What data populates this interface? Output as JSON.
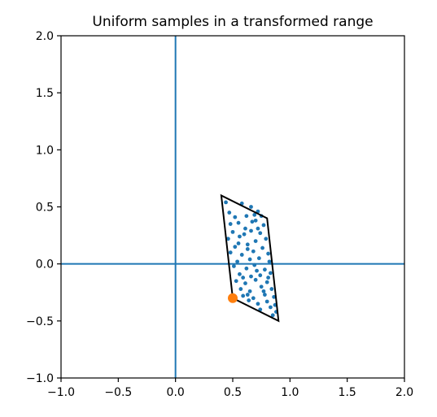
{
  "chart_data": {
    "type": "scatter",
    "title": "Uniform samples in a transformed range",
    "xlabel": "",
    "ylabel": "",
    "xlim": [
      -1.0,
      2.0
    ],
    "ylim": [
      -1.0,
      2.0
    ],
    "xticks": [
      -1.0,
      -0.5,
      0.0,
      0.5,
      1.0,
      1.5,
      2.0
    ],
    "yticks": [
      -1.0,
      -0.5,
      0.0,
      0.5,
      1.0,
      1.5,
      2.0
    ],
    "xtick_labels": [
      "−1.0",
      "−0.5",
      "0.0",
      "0.5",
      "1.0",
      "1.5",
      "2.0"
    ],
    "ytick_labels": [
      "−1.0",
      "−0.5",
      "0.0",
      "0.5",
      "1.0",
      "1.5",
      "2.0"
    ],
    "grid": false,
    "reference_lines": {
      "color": "#1f77b4",
      "x": 0.0,
      "y": 0.0
    },
    "region": {
      "color": "#000000",
      "vertices": [
        [
          0.5,
          -0.3
        ],
        [
          0.4,
          0.6
        ],
        [
          0.8,
          0.4
        ],
        [
          0.9,
          -0.5
        ],
        [
          0.5,
          -0.3
        ]
      ]
    },
    "origin_point": {
      "x": 0.5,
      "y": -0.3,
      "color": "#ff7f0e"
    },
    "samples": {
      "color": "#1f77b4",
      "points": [
        [
          0.44,
          0.54
        ],
        [
          0.47,
          0.45
        ],
        [
          0.52,
          0.41
        ],
        [
          0.58,
          0.53
        ],
        [
          0.66,
          0.5
        ],
        [
          0.72,
          0.46
        ],
        [
          0.62,
          0.42
        ],
        [
          0.69,
          0.43
        ],
        [
          0.75,
          0.42
        ],
        [
          0.48,
          0.35
        ],
        [
          0.55,
          0.36
        ],
        [
          0.7,
          0.38
        ],
        [
          0.77,
          0.34
        ],
        [
          0.5,
          0.28
        ],
        [
          0.61,
          0.31
        ],
        [
          0.66,
          0.29
        ],
        [
          0.74,
          0.27
        ],
        [
          0.46,
          0.22
        ],
        [
          0.56,
          0.24
        ],
        [
          0.7,
          0.2
        ],
        [
          0.79,
          0.22
        ],
        [
          0.52,
          0.15
        ],
        [
          0.63,
          0.17
        ],
        [
          0.76,
          0.14
        ],
        [
          0.48,
          0.1
        ],
        [
          0.58,
          0.08
        ],
        [
          0.68,
          0.11
        ],
        [
          0.81,
          0.09
        ],
        [
          0.54,
          0.02
        ],
        [
          0.65,
          0.04
        ],
        [
          0.73,
          0.05
        ],
        [
          0.82,
          0.02
        ],
        [
          0.51,
          -0.02
        ],
        [
          0.62,
          -0.04
        ],
        [
          0.69,
          -0.01
        ],
        [
          0.78,
          -0.05
        ],
        [
          0.56,
          -0.09
        ],
        [
          0.66,
          -0.11
        ],
        [
          0.74,
          -0.1
        ],
        [
          0.83,
          -0.08
        ],
        [
          0.53,
          -0.15
        ],
        [
          0.61,
          -0.17
        ],
        [
          0.7,
          -0.14
        ],
        [
          0.8,
          -0.16
        ],
        [
          0.57,
          -0.22
        ],
        [
          0.65,
          -0.24
        ],
        [
          0.75,
          -0.2
        ],
        [
          0.84,
          -0.22
        ],
        [
          0.59,
          -0.28
        ],
        [
          0.68,
          -0.3
        ],
        [
          0.78,
          -0.27
        ],
        [
          0.86,
          -0.29
        ],
        [
          0.64,
          -0.32
        ],
        [
          0.72,
          -0.35
        ],
        [
          0.8,
          -0.33
        ],
        [
          0.87,
          -0.36
        ],
        [
          0.74,
          -0.4
        ],
        [
          0.83,
          -0.38
        ],
        [
          0.88,
          -0.42
        ],
        [
          0.85,
          -0.45
        ],
        [
          0.6,
          0.26
        ],
        [
          0.63,
          0.13
        ],
        [
          0.72,
          0.31
        ],
        [
          0.59,
          -0.12
        ],
        [
          0.77,
          -0.24
        ],
        [
          0.67,
          0.37
        ],
        [
          0.55,
          0.18
        ],
        [
          0.71,
          -0.06
        ],
        [
          0.63,
          -0.27
        ],
        [
          0.81,
          -0.12
        ]
      ]
    }
  }
}
